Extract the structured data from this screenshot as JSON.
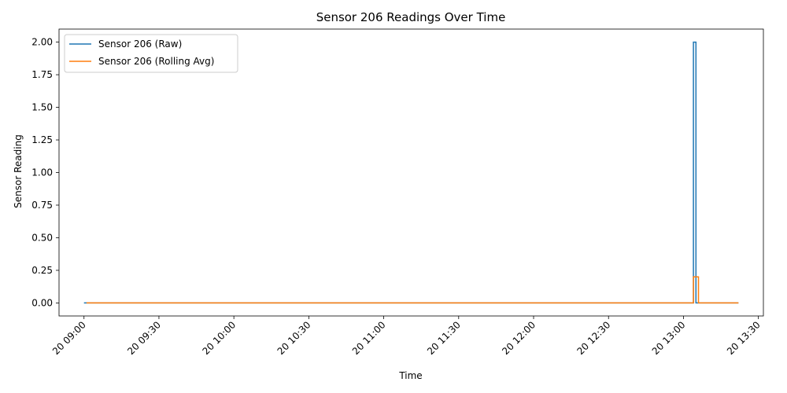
{
  "chart_data": {
    "type": "line",
    "title": "Sensor 206 Readings Over Time",
    "xlabel": "Time",
    "ylabel": "Sensor Reading",
    "xlim": [
      "2000-01-20T08:50",
      "2000-01-20T13:32"
    ],
    "ylim": [
      -0.1,
      2.1
    ],
    "x_ticks": [
      {
        "t": "2000-01-20T09:00",
        "label": "20 09:00"
      },
      {
        "t": "2000-01-20T09:30",
        "label": "20 09:30"
      },
      {
        "t": "2000-01-20T10:00",
        "label": "20 10:00"
      },
      {
        "t": "2000-01-20T10:30",
        "label": "20 10:30"
      },
      {
        "t": "2000-01-20T11:00",
        "label": "20 11:00"
      },
      {
        "t": "2000-01-20T11:30",
        "label": "20 11:30"
      },
      {
        "t": "2000-01-20T12:00",
        "label": "20 12:00"
      },
      {
        "t": "2000-01-20T12:30",
        "label": "20 12:30"
      },
      {
        "t": "2000-01-20T13:00",
        "label": "20 13:00"
      },
      {
        "t": "2000-01-20T13:30",
        "label": "20 13:30"
      }
    ],
    "y_ticks": [
      "0.00",
      "0.25",
      "0.50",
      "0.75",
      "1.00",
      "1.25",
      "1.50",
      "1.75",
      "2.00"
    ],
    "grid": false,
    "legend_position": "upper left",
    "series": [
      {
        "name": "Sensor 206 (Raw)",
        "color": "#1f77b4",
        "points": [
          {
            "x": "2000-01-20T09:00",
            "y": 0
          },
          {
            "x": "2000-01-20T13:04",
            "y": 0
          },
          {
            "x": "2000-01-20T13:04",
            "y": 2.0
          },
          {
            "x": "2000-01-20T13:05",
            "y": 2.0
          },
          {
            "x": "2000-01-20T13:05",
            "y": 0
          },
          {
            "x": "2000-01-20T13:22",
            "y": 0
          }
        ]
      },
      {
        "name": "Sensor 206 (Rolling Avg)",
        "color": "#ff7f0e",
        "points": [
          {
            "x": "2000-01-20T09:01",
            "y": 0
          },
          {
            "x": "2000-01-20T13:04",
            "y": 0
          },
          {
            "x": "2000-01-20T13:04",
            "y": 0.2
          },
          {
            "x": "2000-01-20T13:06",
            "y": 0.2
          },
          {
            "x": "2000-01-20T13:06",
            "y": 0
          },
          {
            "x": "2000-01-20T13:22",
            "y": 0
          }
        ]
      }
    ]
  }
}
